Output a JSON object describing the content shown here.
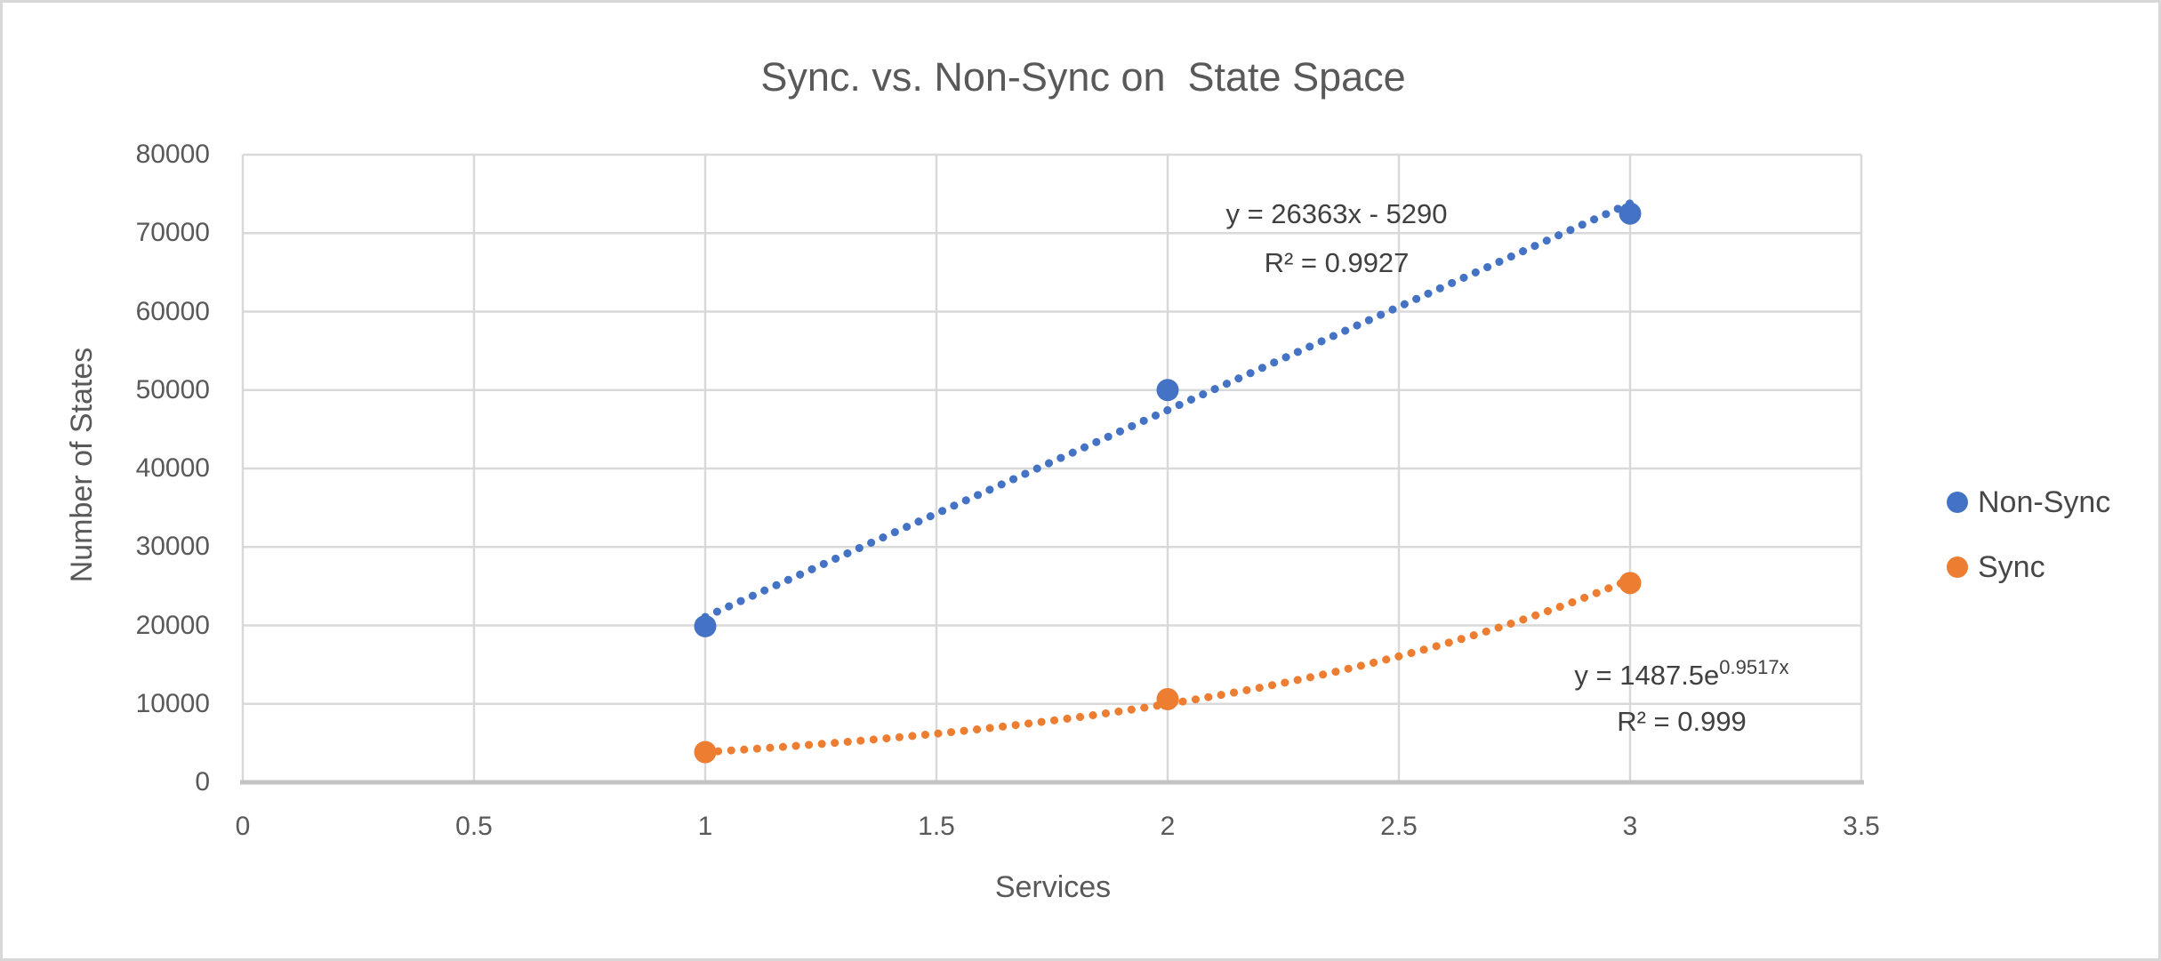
{
  "title": "Sync. vs. Non-Sync on  State Space",
  "chart_data": {
    "type": "scatter",
    "x": [
      1,
      2,
      3
    ],
    "series": [
      {
        "name": "Non-Sync",
        "color": "#4472C4",
        "values": [
          19900,
          50000,
          72500
        ],
        "trendline": {
          "type": "linear",
          "slope": 26363,
          "intercept": -5290,
          "domain": [
            1,
            3
          ],
          "label_line1": "y = 26363x - 5290",
          "label_line2": "R² = 0.9927"
        }
      },
      {
        "name": "Sync",
        "color": "#ED7D31",
        "values": [
          3850,
          10600,
          25400
        ],
        "trendline": {
          "type": "exponential",
          "coefficient": 1487.5,
          "rate": 0.9517,
          "domain": [
            1,
            3
          ],
          "label_base": "y = 1487.5e",
          "label_exponent": "0.9517x",
          "label_line2": "R² = 0.999"
        }
      }
    ],
    "xlabel": "Services",
    "ylabel": "Number of States",
    "xlim": [
      0,
      3.5
    ],
    "ylim": [
      0,
      80000
    ],
    "x_ticks": [
      "0",
      "0.5",
      "1",
      "1.5",
      "2",
      "2.5",
      "3",
      "3.5"
    ],
    "y_ticks": [
      "0",
      "10000",
      "20000",
      "30000",
      "40000",
      "50000",
      "60000",
      "70000",
      "80000"
    ],
    "grid": true,
    "legend_position": "right",
    "legend": [
      "Non-Sync",
      "Sync"
    ]
  },
  "colors": {
    "grid": "#D9D9D9",
    "axis_line": "#C3C3C3",
    "tick_text": "#595959",
    "title_text": "#595959",
    "equation_text": "#404040",
    "legend_text": "#474747",
    "background": "#FFFFFF",
    "frame_border": "#D8D8D8"
  }
}
